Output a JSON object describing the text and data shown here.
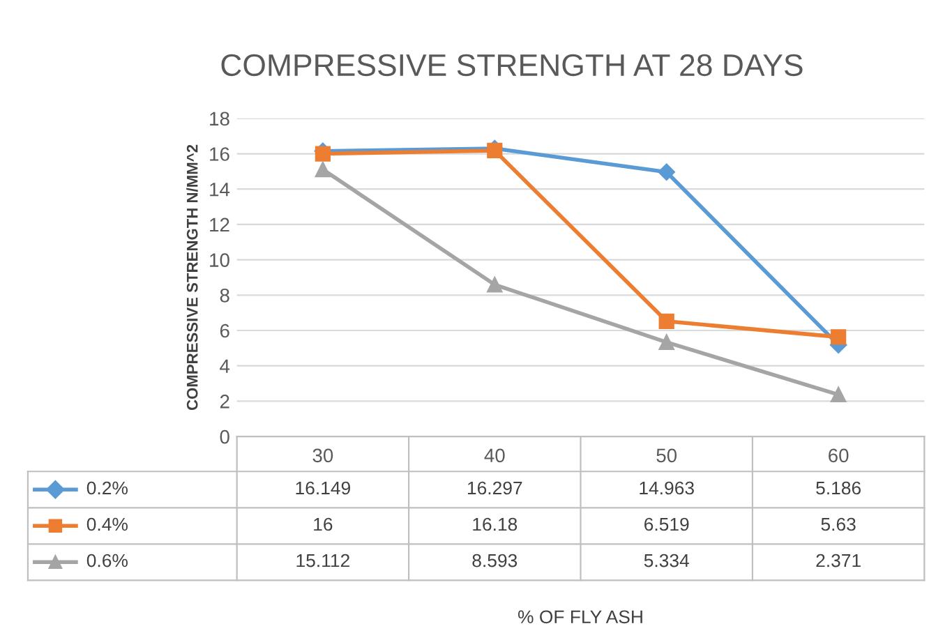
{
  "chart_data": {
    "type": "line",
    "title": "COMPRESSIVE STRENGTH AT 28 DAYS",
    "annotations": [
      "% OF FLY ASH"
    ],
    "ylabel": "COMPRESSIVE STRENGTH N/MM^2",
    "categories": [
      "30",
      "40",
      "50",
      "60"
    ],
    "series": [
      {
        "name": "0.2%",
        "color": "#5b9bd5",
        "marker": "diamond",
        "values": [
          16.149,
          16.297,
          14.963,
          5.186
        ]
      },
      {
        "name": "0.4%",
        "color": "#ed7d31",
        "marker": "square",
        "values": [
          16,
          16.18,
          6.519,
          5.63
        ]
      },
      {
        "name": "0.6%",
        "color": "#a5a5a5",
        "marker": "triangle",
        "values": [
          15.112,
          8.593,
          5.334,
          2.371
        ]
      }
    ],
    "ylim": [
      0,
      18
    ],
    "yticks": [
      0,
      2,
      4,
      6,
      8,
      10,
      12,
      14,
      16,
      18
    ],
    "grid": "y",
    "legend": "bottom",
    "data_labels": true
  }
}
